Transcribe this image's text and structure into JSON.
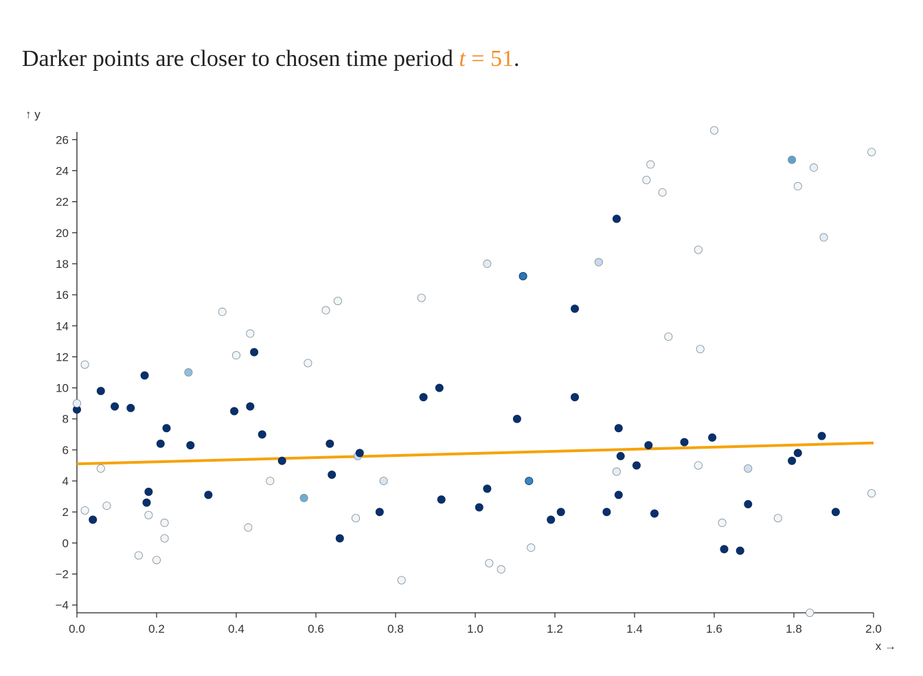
{
  "headline": {
    "prefix": "Darker points are closer to chosen time period ",
    "var_name": "t",
    "equals": " = ",
    "value": "51",
    "suffix": "."
  },
  "colors": {
    "regression_line": "#f5a30a",
    "highlight_text": "#f28e2b",
    "scheme_light": "#f7fbff",
    "scheme_dark": "#08306b"
  },
  "chart_data": {
    "type": "scatter",
    "xlabel": "x →",
    "ylabel": "↑ y",
    "xlim": [
      0,
      2
    ],
    "ylim": [
      -4.5,
      26.5
    ],
    "x_ticks": [
      0,
      0.2,
      0.4,
      0.6,
      0.8,
      1,
      1.2,
      1.4,
      1.6,
      1.8,
      2
    ],
    "y_ticks": [
      -4,
      -2,
      0,
      2,
      4,
      6,
      8,
      10,
      12,
      14,
      16,
      18,
      20,
      22,
      24,
      26
    ],
    "regression_line": [
      [
        0,
        5.1
      ],
      [
        2,
        6.45
      ]
    ],
    "point_shade_meaning": "closeness to t (0 = far / light, 1 = close / dark)",
    "points": [
      {
        "x": 0.0,
        "y": 8.6,
        "c": 1.0
      },
      {
        "x": 0.0,
        "y": 9.0,
        "c": 0.1
      },
      {
        "x": 0.02,
        "y": 11.5,
        "c": 0.05
      },
      {
        "x": 0.02,
        "y": 2.1,
        "c": 0.05
      },
      {
        "x": 0.04,
        "y": 1.5,
        "c": 1.0
      },
      {
        "x": 0.06,
        "y": 9.8,
        "c": 1.0
      },
      {
        "x": 0.06,
        "y": 4.8,
        "c": 0.05
      },
      {
        "x": 0.075,
        "y": 2.4,
        "c": 0.05
      },
      {
        "x": 0.095,
        "y": 8.8,
        "c": 1.0
      },
      {
        "x": 0.135,
        "y": 8.7,
        "c": 1.0
      },
      {
        "x": 0.155,
        "y": -0.8,
        "c": 0.05
      },
      {
        "x": 0.17,
        "y": 10.8,
        "c": 1.0
      },
      {
        "x": 0.175,
        "y": 2.6,
        "c": 1.0
      },
      {
        "x": 0.18,
        "y": 3.3,
        "c": 1.0
      },
      {
        "x": 0.18,
        "y": 1.8,
        "c": 0.05
      },
      {
        "x": 0.2,
        "y": -1.1,
        "c": 0.05
      },
      {
        "x": 0.21,
        "y": 6.4,
        "c": 1.0
      },
      {
        "x": 0.22,
        "y": 0.3,
        "c": 0.05
      },
      {
        "x": 0.22,
        "y": 1.3,
        "c": 0.05
      },
      {
        "x": 0.225,
        "y": 7.4,
        "c": 1.0
      },
      {
        "x": 0.28,
        "y": 11.0,
        "c": 0.5
      },
      {
        "x": 0.285,
        "y": 6.3,
        "c": 1.0
      },
      {
        "x": 0.33,
        "y": 3.1,
        "c": 1.0
      },
      {
        "x": 0.365,
        "y": 14.9,
        "c": 0.05
      },
      {
        "x": 0.395,
        "y": 8.5,
        "c": 1.0
      },
      {
        "x": 0.4,
        "y": 12.1,
        "c": 0.05
      },
      {
        "x": 0.43,
        "y": 1.0,
        "c": 0.05
      },
      {
        "x": 0.435,
        "y": 13.5,
        "c": 0.05
      },
      {
        "x": 0.435,
        "y": 8.8,
        "c": 1.0
      },
      {
        "x": 0.445,
        "y": 12.3,
        "c": 1.0
      },
      {
        "x": 0.465,
        "y": 7.0,
        "c": 1.0
      },
      {
        "x": 0.485,
        "y": 4.0,
        "c": 0.05
      },
      {
        "x": 0.515,
        "y": 5.3,
        "c": 1.0
      },
      {
        "x": 0.58,
        "y": 11.6,
        "c": 0.05
      },
      {
        "x": 0.57,
        "y": 2.9,
        "c": 0.6
      },
      {
        "x": 0.625,
        "y": 15.0,
        "c": 0.05
      },
      {
        "x": 0.635,
        "y": 6.4,
        "c": 1.0
      },
      {
        "x": 0.64,
        "y": 4.4,
        "c": 1.0
      },
      {
        "x": 0.655,
        "y": 15.6,
        "c": 0.05
      },
      {
        "x": 0.66,
        "y": 0.3,
        "c": 1.0
      },
      {
        "x": 0.7,
        "y": 1.6,
        "c": 0.05
      },
      {
        "x": 0.705,
        "y": 5.6,
        "c": 0.3
      },
      {
        "x": 0.71,
        "y": 5.8,
        "c": 1.0
      },
      {
        "x": 0.76,
        "y": 2.0,
        "c": 1.0
      },
      {
        "x": 0.77,
        "y": 4.0,
        "c": 0.2
      },
      {
        "x": 0.815,
        "y": -2.4,
        "c": 0.05
      },
      {
        "x": 0.865,
        "y": 15.8,
        "c": 0.05
      },
      {
        "x": 0.87,
        "y": 9.4,
        "c": 1.0
      },
      {
        "x": 0.91,
        "y": 10.0,
        "c": 1.0
      },
      {
        "x": 0.915,
        "y": 2.8,
        "c": 1.0
      },
      {
        "x": 1.01,
        "y": 2.3,
        "c": 1.0
      },
      {
        "x": 1.03,
        "y": 18.0,
        "c": 0.15
      },
      {
        "x": 1.03,
        "y": 3.5,
        "c": 1.0
      },
      {
        "x": 1.035,
        "y": -1.3,
        "c": 0.05
      },
      {
        "x": 1.065,
        "y": -1.7,
        "c": 0.05
      },
      {
        "x": 1.105,
        "y": 8.0,
        "c": 1.0
      },
      {
        "x": 1.12,
        "y": 17.2,
        "c": 0.8
      },
      {
        "x": 1.135,
        "y": 4.0,
        "c": 0.75
      },
      {
        "x": 1.14,
        "y": -0.3,
        "c": 0.05
      },
      {
        "x": 1.19,
        "y": 1.5,
        "c": 1.0
      },
      {
        "x": 1.215,
        "y": 2.0,
        "c": 1.0
      },
      {
        "x": 1.25,
        "y": 15.1,
        "c": 1.0
      },
      {
        "x": 1.25,
        "y": 9.4,
        "c": 1.0
      },
      {
        "x": 1.31,
        "y": 18.1,
        "c": 0.3
      },
      {
        "x": 1.33,
        "y": 2.0,
        "c": 1.0
      },
      {
        "x": 1.355,
        "y": 4.6,
        "c": 0.12
      },
      {
        "x": 1.355,
        "y": 20.9,
        "c": 1.0
      },
      {
        "x": 1.36,
        "y": 7.4,
        "c": 1.0
      },
      {
        "x": 1.36,
        "y": 3.1,
        "c": 1.0
      },
      {
        "x": 1.365,
        "y": 5.6,
        "c": 1.0
      },
      {
        "x": 1.405,
        "y": 5.0,
        "c": 1.0
      },
      {
        "x": 1.43,
        "y": 23.4,
        "c": 0.05
      },
      {
        "x": 1.435,
        "y": 6.3,
        "c": 1.0
      },
      {
        "x": 1.44,
        "y": 24.4,
        "c": 0.05
      },
      {
        "x": 1.45,
        "y": 1.9,
        "c": 1.0
      },
      {
        "x": 1.47,
        "y": 22.6,
        "c": 0.05
      },
      {
        "x": 1.485,
        "y": 13.3,
        "c": 0.05
      },
      {
        "x": 1.525,
        "y": 6.5,
        "c": 1.0
      },
      {
        "x": 1.56,
        "y": 5.0,
        "c": 0.05
      },
      {
        "x": 1.56,
        "y": 18.9,
        "c": 0.05
      },
      {
        "x": 1.565,
        "y": 12.5,
        "c": 0.05
      },
      {
        "x": 1.595,
        "y": 6.8,
        "c": 1.0
      },
      {
        "x": 1.6,
        "y": 26.6,
        "c": 0.05
      },
      {
        "x": 1.62,
        "y": 1.3,
        "c": 0.05
      },
      {
        "x": 1.625,
        "y": -0.4,
        "c": 1.0
      },
      {
        "x": 1.665,
        "y": -0.5,
        "c": 1.0
      },
      {
        "x": 1.685,
        "y": 4.8,
        "c": 0.25
      },
      {
        "x": 1.685,
        "y": 2.5,
        "c": 1.0
      },
      {
        "x": 1.76,
        "y": 1.6,
        "c": 0.05
      },
      {
        "x": 1.795,
        "y": 5.3,
        "c": 1.0
      },
      {
        "x": 1.795,
        "y": 24.7,
        "c": 0.65
      },
      {
        "x": 1.81,
        "y": 5.8,
        "c": 1.0
      },
      {
        "x": 1.81,
        "y": 23.0,
        "c": 0.05
      },
      {
        "x": 1.84,
        "y": -4.5,
        "c": 0.05
      },
      {
        "x": 1.85,
        "y": 24.2,
        "c": 0.1
      },
      {
        "x": 1.87,
        "y": 6.9,
        "c": 1.0
      },
      {
        "x": 1.875,
        "y": 19.7,
        "c": 0.12
      },
      {
        "x": 1.905,
        "y": 2.0,
        "c": 1.0
      },
      {
        "x": 1.995,
        "y": 3.2,
        "c": 0.05
      },
      {
        "x": 1.995,
        "y": 25.2,
        "c": 0.05
      }
    ]
  }
}
